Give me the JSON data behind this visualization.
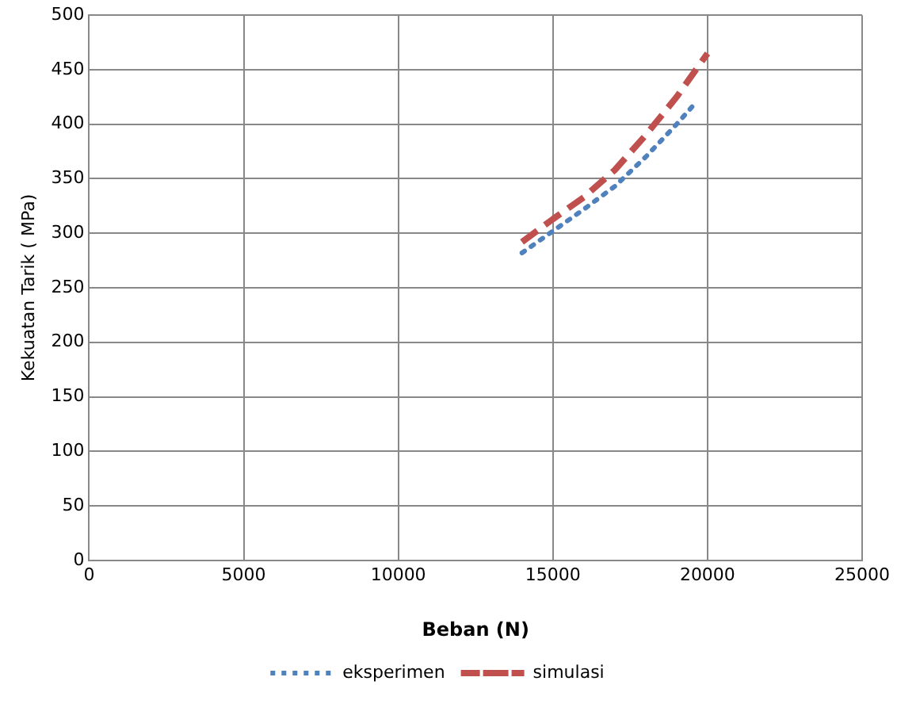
{
  "chart_data": {
    "type": "line",
    "xlabel": "Beban (N)",
    "ylabel": "Kekuatan Tarik ( MPa)",
    "xlim": [
      0,
      25000
    ],
    "xticks": [
      0,
      5000,
      10000,
      15000,
      20000,
      25000
    ],
    "ylim": [
      0,
      500
    ],
    "yticks": [
      0,
      50,
      100,
      150,
      200,
      250,
      300,
      350,
      400,
      450,
      500
    ],
    "grid": true,
    "legend": "bottom",
    "marker": "none",
    "series": [
      {
        "name": "eksperimen",
        "color": "#4f81bd",
        "line_style": "dotted",
        "x": [
          14000,
          15000,
          16000,
          17000,
          18000,
          19000,
          19500
        ],
        "values": [
          282,
          302,
          322,
          343,
          370,
          400,
          416
        ]
      },
      {
        "name": "simulasi",
        "color": "#c0504d",
        "line_style": "dashed",
        "x": [
          14000,
          15000,
          16000,
          17000,
          18000,
          19000,
          20000
        ],
        "values": [
          292,
          313,
          333,
          358,
          390,
          425,
          465
        ]
      }
    ]
  }
}
